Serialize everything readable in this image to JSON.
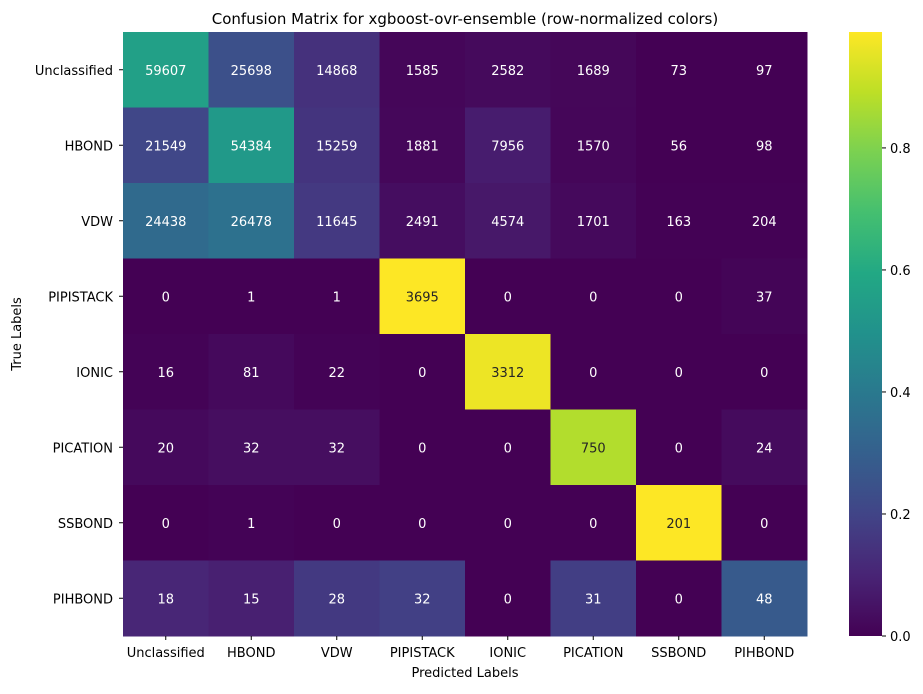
{
  "chart_data": {
    "type": "heatmap",
    "title": "Confusion Matrix for xgboost-ovr-ensemble (row-normalized colors)",
    "xlabel": "Predicted Labels",
    "ylabel": "True Labels",
    "x_categories": [
      "Unclassified",
      "HBOND",
      "VDW",
      "PIPISTACK",
      "IONIC",
      "PICATION",
      "SSBOND",
      "PIHBOND"
    ],
    "y_categories": [
      "Unclassified",
      "HBOND",
      "VDW",
      "PIPISTACK",
      "IONIC",
      "PICATION",
      "SSBOND",
      "PIHBOND"
    ],
    "values": [
      [
        59607,
        25698,
        14868,
        1585,
        2582,
        1689,
        73,
        97
      ],
      [
        21549,
        54384,
        15259,
        1881,
        7956,
        1570,
        56,
        98
      ],
      [
        24438,
        26478,
        11645,
        2491,
        4574,
        1701,
        163,
        204
      ],
      [
        0,
        1,
        1,
        3695,
        0,
        0,
        0,
        37
      ],
      [
        16,
        81,
        22,
        0,
        3312,
        0,
        0,
        0
      ],
      [
        20,
        32,
        32,
        0,
        0,
        750,
        0,
        24
      ],
      [
        0,
        1,
        0,
        0,
        0,
        0,
        201,
        0
      ],
      [
        18,
        15,
        28,
        32,
        0,
        31,
        0,
        48
      ]
    ],
    "color_normalization": "row",
    "colormap": "viridis",
    "colorbar": {
      "range": [
        0,
        0.99
      ],
      "ticks": [
        0.0,
        0.2,
        0.4,
        0.6,
        0.8
      ],
      "tick_labels": [
        "0.0",
        "0.2",
        "0.4",
        "0.6",
        "0.8"
      ]
    },
    "grid": false,
    "legend": "colorbar-right"
  }
}
